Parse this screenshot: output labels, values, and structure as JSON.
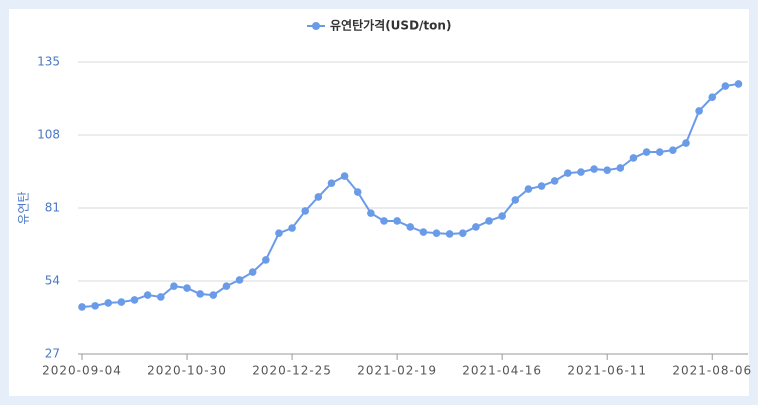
{
  "chart_data": {
    "type": "line",
    "legend": "유연탄가격(USD/ton)",
    "y_label": "유연탄",
    "categories": [
      "2020-09-04",
      null,
      null,
      null,
      null,
      null,
      null,
      null,
      "2020-10-30",
      null,
      null,
      null,
      null,
      null,
      null,
      null,
      "2020-12-25",
      null,
      null,
      null,
      null,
      null,
      null,
      null,
      "2021-02-19",
      null,
      null,
      null,
      null,
      null,
      null,
      null,
      "2021-04-16",
      null,
      null,
      null,
      null,
      null,
      null,
      null,
      "2021-06-11",
      null,
      null,
      null,
      null,
      null,
      null,
      null,
      "2021-08-06",
      null,
      null
    ],
    "series": [
      {
        "name": "유연탄가격(USD/ton)",
        "color": "#6a9be8",
        "values": [
          44.4,
          44.8,
          45.9,
          46.2,
          47.0,
          48.8,
          48.1,
          52.1,
          51.4,
          49.2,
          48.8,
          52.1,
          54.4,
          57.3,
          61.8,
          71.7,
          73.6,
          79.9,
          85.1,
          90.2,
          92.8,
          86.9,
          79.1,
          76.2,
          76.2,
          74.0,
          72.1,
          71.7,
          71.4,
          71.7,
          74.0,
          76.2,
          78.0,
          84.0,
          88.0,
          89.1,
          91.0,
          93.9,
          94.3,
          95.4,
          95.0,
          95.8,
          99.5,
          101.7,
          101.7,
          102.4,
          105.0,
          116.9,
          122.0,
          126.1,
          126.9
        ]
      }
    ],
    "ylim": [
      27,
      135
    ],
    "yticks": [
      27,
      54,
      81,
      108,
      135
    ],
    "grid": true
  }
}
